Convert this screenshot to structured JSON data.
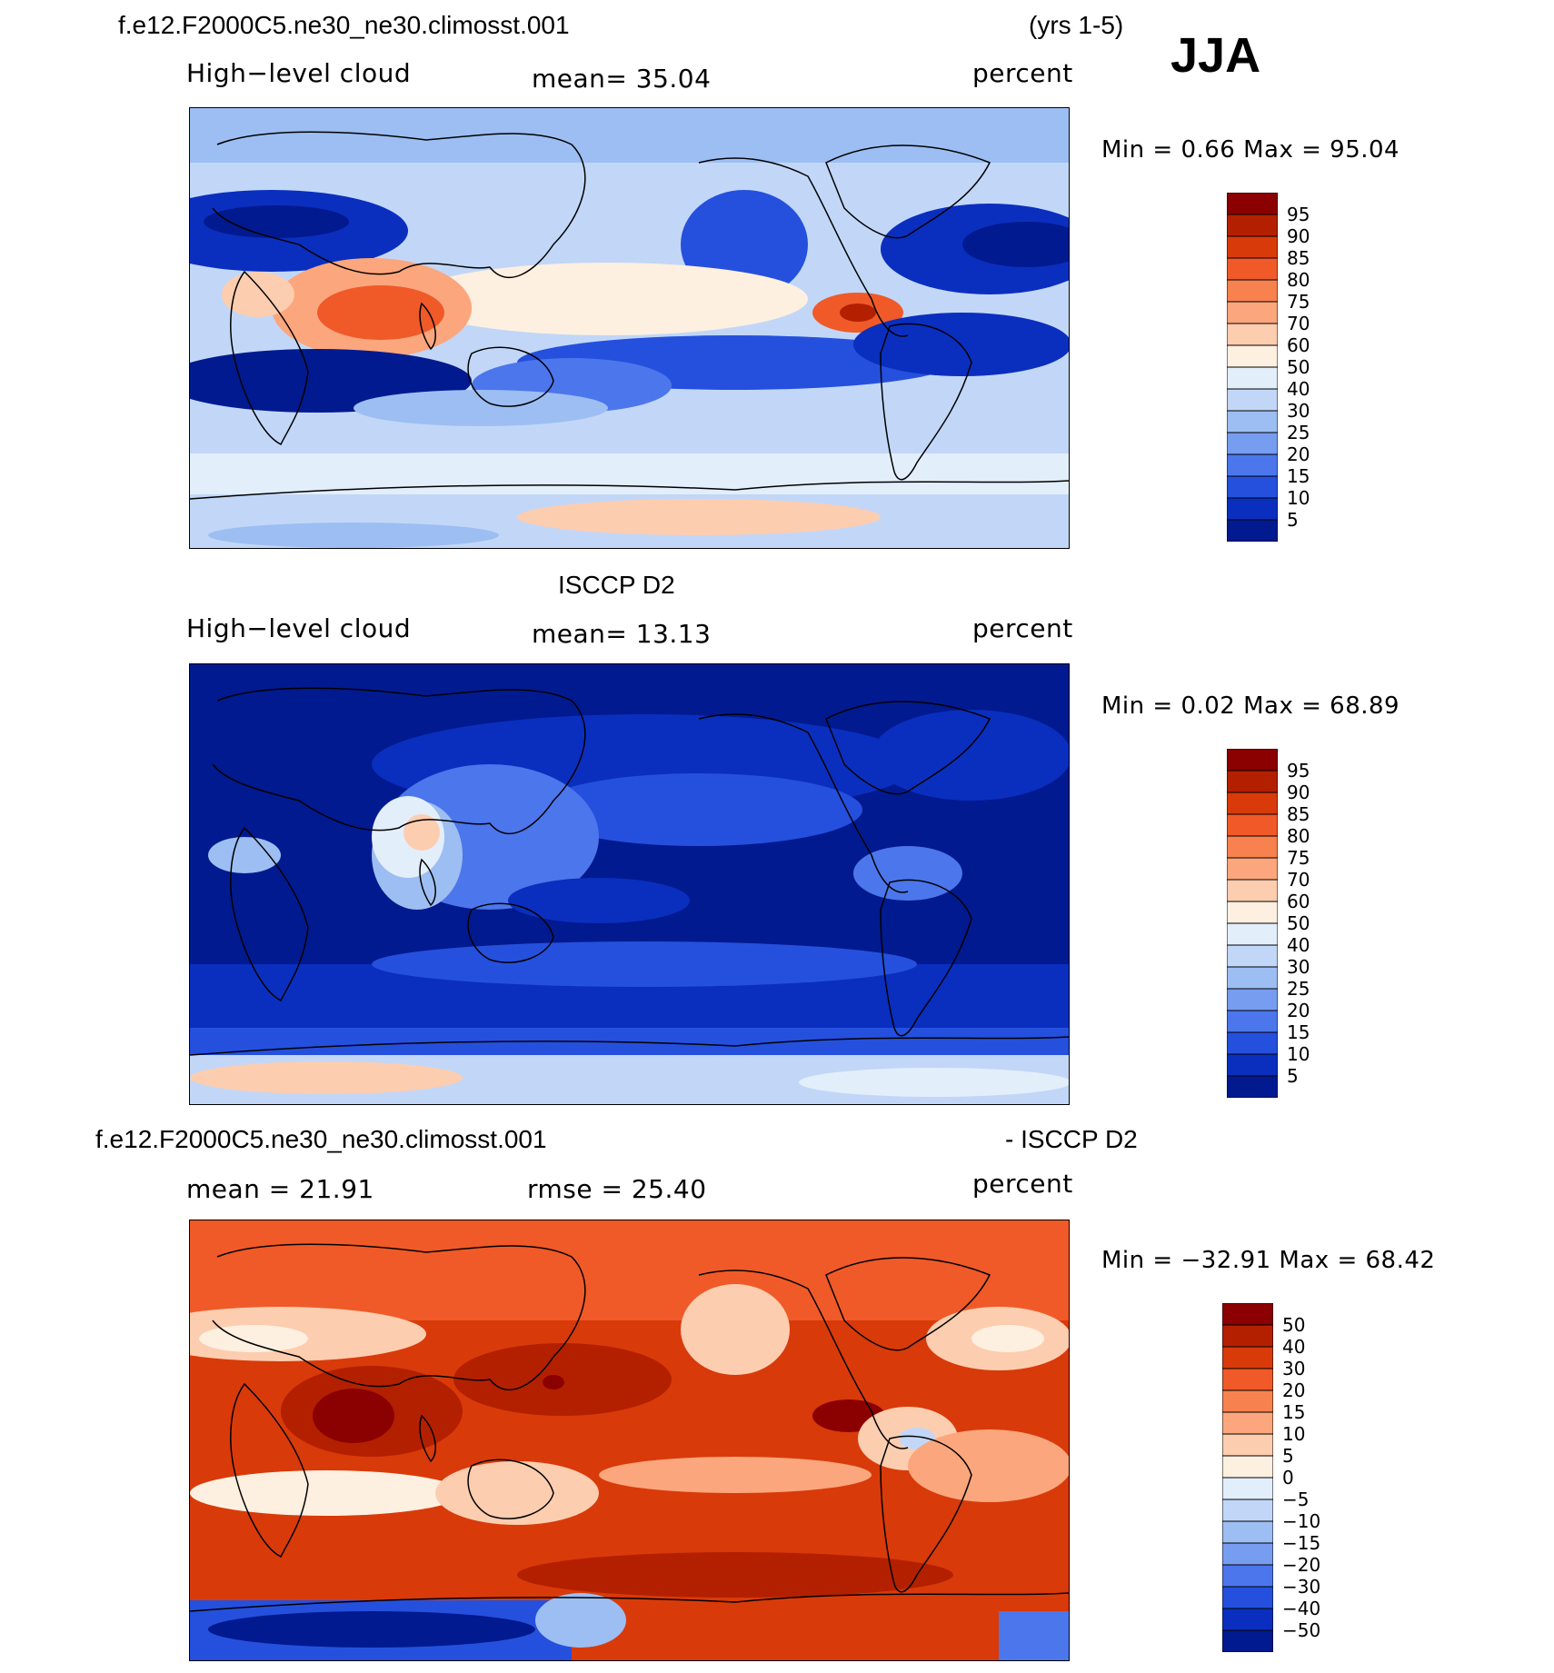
{
  "header": {
    "case_name": "f.e12.F2000C5.ne30_ne30.climosst.001",
    "years": "(yrs 1-5)",
    "season": "JJA"
  },
  "panels": [
    {
      "id": "model",
      "title": "",
      "variable": "High−level cloud",
      "stat": "mean=   35.04",
      "units": "percent",
      "minmax": "Min =    0.66  Max =   95.04",
      "colorbar_labels": [
        "95",
        "90",
        "85",
        "80",
        "75",
        "70",
        "60",
        "50",
        "40",
        "30",
        "25",
        "20",
        "15",
        "10",
        "5"
      ],
      "colors": [
        "#8b0000",
        "#b32000",
        "#d93a0a",
        "#f05a28",
        "#f7824f",
        "#fba67c",
        "#fdcdb0",
        "#fef0e0",
        "#e3eefb",
        "#c2d7f7",
        "#9dbef2",
        "#779df0",
        "#4c76ec",
        "#2550dd",
        "#0a2fbf",
        "#021a8f"
      ],
      "chart_data": {
        "type": "heatmap",
        "title": "f.e12.F2000C5.ne30_ne30.climosst.001",
        "mean": 35.04,
        "min": 0.66,
        "max": 95.04,
        "units": "percent",
        "levels": [
          5,
          10,
          15,
          20,
          25,
          30,
          40,
          50,
          60,
          70,
          75,
          80,
          85,
          90,
          95
        ]
      }
    },
    {
      "id": "obs",
      "title": "ISCCP D2",
      "variable": "High−level cloud",
      "stat": "mean=   13.13",
      "units": "percent",
      "minmax": "Min =    0.02  Max =   68.89",
      "colorbar_labels": [
        "95",
        "90",
        "85",
        "80",
        "75",
        "70",
        "60",
        "50",
        "40",
        "30",
        "25",
        "20",
        "15",
        "10",
        "5"
      ],
      "chart_data": {
        "type": "heatmap",
        "title": "ISCCP D2",
        "mean": 13.13,
        "min": 0.02,
        "max": 68.89,
        "units": "percent",
        "levels": [
          5,
          10,
          15,
          20,
          25,
          30,
          40,
          50,
          60,
          70,
          75,
          80,
          85,
          90,
          95
        ]
      }
    },
    {
      "id": "diff",
      "title_left": "f.e12.F2000C5.ne30_ne30.climosst.001",
      "title_right": "- ISCCP D2",
      "stat_left": "mean =   21.91",
      "stat_mid": "rmse =   25.40",
      "units": "percent",
      "minmax": "Min = −32.91  Max =   68.42",
      "colorbar_labels": [
        "50",
        "40",
        "30",
        "20",
        "15",
        "10",
        "5",
        "0",
        "−5",
        "−10",
        "−15",
        "−20",
        "−30",
        "−40",
        "−50"
      ],
      "chart_data": {
        "type": "heatmap",
        "title": "f.e12.F2000C5.ne30_ne30.climosst.001 - ISCCP D2",
        "mean": 21.91,
        "rmse": 25.4,
        "min": -32.91,
        "max": 68.42,
        "units": "percent",
        "levels": [
          -50,
          -40,
          -30,
          -20,
          -15,
          -10,
          -5,
          0,
          5,
          10,
          15,
          20,
          30,
          40,
          50
        ]
      }
    }
  ]
}
